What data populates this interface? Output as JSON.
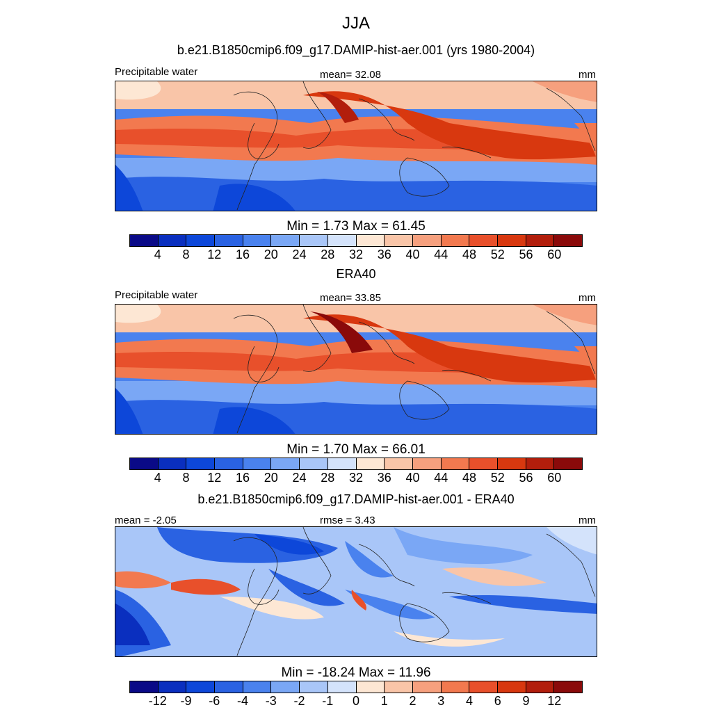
{
  "title": "JJA",
  "panels": [
    {
      "heading": "b.e21.B1850cmip6.f09_g17.DAMIP-hist-aer.001 (yrs 1980-2004)",
      "left_label": "Precipitable water",
      "center_label": "mean=  32.08",
      "right_label": "mm",
      "stats": "Min =   1.73 Max =  61.45",
      "field_min": 1.73,
      "field_max": 61.45,
      "field_mean": 32.08,
      "colorbar_ticks": [
        "4",
        "8",
        "12",
        "16",
        "20",
        "24",
        "28",
        "32",
        "36",
        "40",
        "44",
        "48",
        "52",
        "56",
        "60"
      ]
    },
    {
      "heading": "ERA40",
      "left_label": "Precipitable water",
      "center_label": "mean=  33.85",
      "right_label": "mm",
      "stats": "Min =   1.70 Max =  66.01",
      "field_min": 1.7,
      "field_max": 66.01,
      "field_mean": 33.85,
      "colorbar_ticks": [
        "4",
        "8",
        "12",
        "16",
        "20",
        "24",
        "28",
        "32",
        "36",
        "40",
        "44",
        "48",
        "52",
        "56",
        "60"
      ]
    },
    {
      "heading": "b.e21.B1850cmip6.f09_g17.DAMIP-hist-aer.001 - ERA40",
      "left_label": "mean =  -2.05",
      "center_label": "rmse =   3.43",
      "right_label": "mm",
      "stats": "Min = -18.24 Max =  11.96",
      "field_min": -18.24,
      "field_max": 11.96,
      "field_mean": -2.05,
      "field_rmse": 3.43,
      "colorbar_ticks": [
        "-12",
        "-9",
        "-6",
        "-4",
        "-3",
        "-2",
        "-1",
        "0",
        "1",
        "2",
        "3",
        "4",
        "6",
        "9",
        "12"
      ]
    }
  ],
  "colors": {
    "palette": [
      "#0a0a87",
      "#0a2fbf",
      "#0d47d9",
      "#2a62e2",
      "#4a82ee",
      "#7aa7f5",
      "#a9c6f8",
      "#d4e3fb",
      "#fde7d4",
      "#f9c5a8",
      "#f6a07e",
      "#f2794f",
      "#e8502b",
      "#d8380f",
      "#b21e0c",
      "#8a0a0a"
    ],
    "land_line": "#222222"
  }
}
